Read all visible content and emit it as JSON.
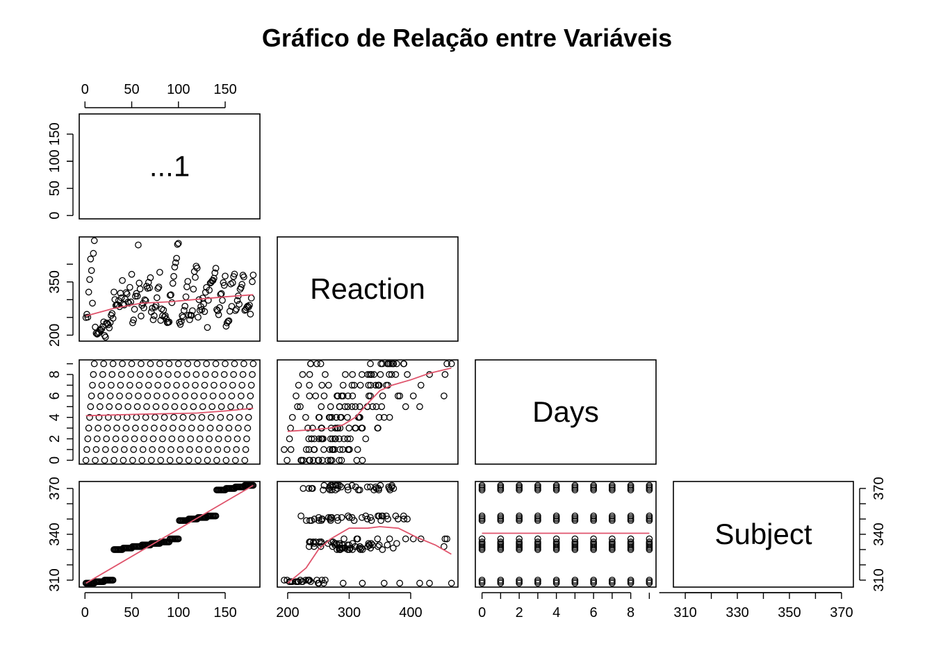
{
  "chart_data": {
    "type": "scatter",
    "title": "Gráfico de Relação entre Variáveis",
    "variables": [
      "...1",
      "Reaction",
      "Days",
      "Subject"
    ],
    "ticks": {
      "...1": [
        0,
        50,
        100,
        150
      ],
      "Reaction": [
        200,
        300,
        400
      ],
      "Reaction_y": [
        200,
        350
      ],
      "Days": [
        0,
        2,
        4,
        6,
        8
      ],
      "Subject": [
        310,
        330,
        350,
        370
      ],
      "Subject_y": [
        310,
        340,
        370
      ]
    },
    "ranges": {
      "...1": [
        1,
        180
      ],
      "Reaction": [
        194,
        466
      ],
      "Days": [
        0,
        9
      ],
      "Subject": [
        308,
        372
      ]
    },
    "subject_ids": [
      308,
      309,
      310,
      330,
      331,
      332,
      333,
      334,
      335,
      337,
      349,
      350,
      351,
      352,
      369,
      370,
      371,
      372
    ],
    "reaction": [
      249.56,
      258.7,
      250.8,
      321.44,
      356.85,
      414.69,
      382.2,
      290.15,
      430.59,
      466.35,
      222.73,
      205.27,
      202.98,
      204.71,
      207.72,
      215.96,
      213.63,
      217.73,
      224.3,
      237.31,
      199.05,
      194.33,
      234.32,
      232.84,
      229.31,
      220.46,
      235.42,
      255.75,
      261.01,
      247.52,
      321.54,
      300.4,
      283.86,
      285.13,
      285.8,
      297.59,
      280.24,
      318.26,
      305.35,
      354.05,
      287.61,
      285.0,
      301.82,
      320.12,
      316.28,
      293.32,
      290.08,
      334.82,
      293.75,
      371.58,
      234.86,
      242.81,
      272.96,
      309.77,
      317.46,
      309.99,
      454.16,
      346.83,
      330.3,
      253.86,
      283.84,
      289.55,
      276.77,
      299.81,
      297.17,
      338.17,
      332.02,
      348.82,
      333.36,
      362.04,
      265.47,
      276.2,
      243.36,
      254.67,
      279.02,
      284.19,
      305.53,
      331.5,
      335.75,
      377.3,
      241.61,
      273.95,
      254.49,
      270.84,
      251.45,
      254.64,
      245.45,
      235.31,
      235.75,
      237.25,
      312.37,
      313.8,
      291.61,
      346.12,
      365.73,
      391.84,
      404.26,
      416.69,
      455.86,
      458.92,
      236.1,
      230.31,
      238.92,
      254.92,
      250.71,
      269.77,
      281.56,
      308.1,
      336.28,
      351.65,
      256.29,
      243.46,
      256.2,
      255.53,
      268.92,
      329.72,
      379.44,
      362.91,
      394.49,
      389.05,
      250.53,
      300.06,
      269.89,
      280.58,
      271.84,
      304.63,
      287.75,
      266.56,
      320.77,
      334.48,
      221.67,
      298.19,
      326.88,
      346.81,
      348.74,
      352.83,
      354.42,
      360.43,
      375.64,
      388.54,
      271.99,
      268.7,
      257.72,
      277.66,
      314.82,
      317.21,
      298.14,
      348.12,
      340.28,
      366.51,
      225.26,
      234.52,
      238.9,
      240.47,
      267.53,
      344.19,
      281.15,
      347.58,
      365.16,
      372.23,
      269.41,
      273.47,
      297.6,
      310.63,
      287.17,
      329.61,
      334.48,
      343.22,
      369.14,
      364.12,
      269.84,
      272.43,
      277.89,
      281.79,
      279.17,
      284.51,
      259.27,
      304.63,
      350.78,
      369.47
    ],
    "smooth_lines": [
      {
        "x": "...1",
        "y": "Reaction",
        "points": [
          [
            1,
            254
          ],
          [
            30,
            275
          ],
          [
            60,
            290
          ],
          [
            90,
            294
          ],
          [
            120,
            301
          ],
          [
            150,
            308
          ],
          [
            180,
            314
          ]
        ]
      },
      {
        "x": "...1",
        "y": "Days",
        "points": [
          [
            1,
            4.15
          ],
          [
            60,
            4.3
          ],
          [
            120,
            4.4
          ],
          [
            150,
            4.6
          ],
          [
            180,
            4.85
          ]
        ]
      },
      {
        "x": "Reaction",
        "y": "Days",
        "points": [
          [
            200,
            2.7
          ],
          [
            240,
            2.85
          ],
          [
            270,
            3.0
          ],
          [
            290,
            3.3
          ],
          [
            310,
            4.0
          ],
          [
            330,
            5.3
          ],
          [
            350,
            6.5
          ],
          [
            370,
            7.0
          ],
          [
            400,
            7.5
          ],
          [
            430,
            8.1
          ],
          [
            466,
            8.6
          ]
        ]
      },
      {
        "x": "...1",
        "y": "Subject",
        "points": [
          [
            1,
            308
          ],
          [
            180,
            372
          ]
        ]
      },
      {
        "x": "Reaction",
        "y": "Subject",
        "points": [
          [
            200,
            308
          ],
          [
            230,
            318
          ],
          [
            250,
            330
          ],
          [
            270,
            337
          ],
          [
            300,
            344
          ],
          [
            330,
            344
          ],
          [
            350,
            345
          ],
          [
            380,
            344
          ],
          [
            410,
            338
          ],
          [
            440,
            333
          ],
          [
            466,
            327
          ]
        ]
      },
      {
        "x": "Days",
        "y": "Subject",
        "points": [
          [
            0,
            340.7
          ],
          [
            9,
            340.7
          ]
        ]
      }
    ]
  },
  "colors": {
    "points": "#000000",
    "smooth": "#DF536B",
    "frame": "#000000"
  }
}
